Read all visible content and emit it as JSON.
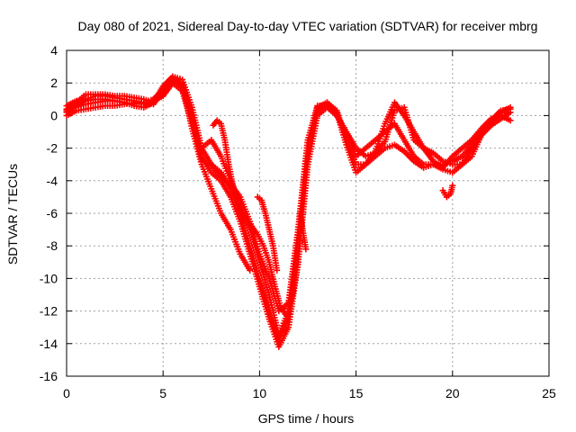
{
  "chart_data": {
    "type": "scatter",
    "title": "Day 080 of 2021, Sidereal Day-to-day VTEC variation (SDTVAR) for receiver mbrg",
    "xlabel": "GPS time / hours",
    "ylabel": "SDTVAR / TECUs",
    "xlim": [
      0,
      25
    ],
    "ylim": [
      -16,
      4
    ],
    "xticks": [
      0,
      5,
      10,
      15,
      20,
      25
    ],
    "yticks": [
      -16,
      -14,
      -12,
      -10,
      -8,
      -6,
      -4,
      -2,
      0,
      2,
      4
    ],
    "grid": true,
    "legend": "none",
    "marker": "plus",
    "color": "#ff0000",
    "series": [
      {
        "x": [
          0.0,
          0.5,
          1.0,
          1.5,
          2.0,
          2.5,
          3.0,
          3.5,
          4.0,
          4.5,
          5.0,
          5.5,
          6.0,
          6.5,
          7.0,
          7.5,
          8.0,
          8.5,
          9.0,
          9.5,
          10.0,
          10.5,
          11.0,
          11.5,
          12.0,
          12.5,
          13.0,
          13.5,
          14.0,
          14.5,
          15.0,
          15.5,
          16.0,
          16.5,
          17.0,
          17.5,
          18.0,
          18.5,
          19.0,
          19.5,
          20.0,
          20.5,
          21.0,
          21.5,
          22.0,
          22.5,
          23.0
        ],
        "y": [
          0.2,
          0.6,
          1.0,
          1.2,
          1.2,
          1.1,
          1.0,
          0.9,
          0.8,
          0.7,
          1.5,
          2.2,
          2.0,
          0.0,
          -2.5,
          -3.5,
          -4.0,
          -5.0,
          -6.5,
          -8.5,
          -10.5,
          -12.5,
          -14.2,
          -13.0,
          -9.0,
          -3.0,
          0.0,
          0.5,
          0.0,
          -1.0,
          -2.5,
          -2.0,
          -1.5,
          -1.0,
          -0.5,
          -1.5,
          -2.5,
          -3.0,
          -3.0,
          -3.3,
          -3.5,
          -3.0,
          -2.0,
          -1.2,
          -0.6,
          -0.2,
          0.2
        ]
      },
      {
        "x": [
          0.0,
          0.5,
          1.0,
          1.5,
          2.0,
          2.5,
          3.0,
          3.5,
          4.0,
          4.5,
          5.0,
          5.5,
          6.0,
          6.5,
          7.0,
          7.5,
          8.0,
          8.5,
          9.0,
          9.5,
          10.0,
          10.5,
          11.0,
          11.5,
          12.0,
          12.5,
          13.0,
          13.5,
          14.0,
          14.5,
          15.0,
          15.5,
          16.0,
          16.5,
          17.0,
          17.5,
          18.0,
          18.5,
          19.0,
          19.5,
          20.0,
          20.5,
          21.0,
          21.5,
          22.0,
          22.5,
          23.0
        ],
        "y": [
          0.4,
          0.8,
          1.3,
          1.3,
          1.3,
          1.2,
          1.2,
          1.1,
          1.0,
          0.8,
          1.8,
          2.4,
          2.2,
          0.5,
          -2.0,
          -3.0,
          -3.5,
          -4.5,
          -6.0,
          -8.0,
          -10.0,
          -11.8,
          -13.8,
          -12.5,
          -8.5,
          -2.5,
          0.3,
          0.8,
          0.3,
          -1.5,
          -3.0,
          -3.0,
          -2.5,
          -2.0,
          -1.8,
          -2.2,
          -2.8,
          -3.2,
          -3.0,
          -3.0,
          -2.8,
          -2.5,
          -1.8,
          -1.0,
          -0.4,
          0.2,
          0.5
        ]
      },
      {
        "x": [
          0.0,
          0.5,
          1.0,
          1.5,
          2.0,
          2.5,
          3.0,
          3.5,
          4.0,
          4.5,
          5.0,
          5.5,
          6.0,
          6.5,
          7.0,
          7.5,
          8.0,
          8.5,
          9.0,
          9.5,
          10.0,
          10.5,
          11.0,
          11.5,
          12.0,
          12.5,
          13.0,
          13.5,
          14.0,
          14.5,
          15.0,
          15.5,
          16.0,
          16.5,
          17.0,
          17.5,
          18.0,
          18.5,
          19.0,
          19.5,
          20.0,
          20.5,
          21.0,
          21.5,
          22.0,
          22.5,
          23.0
        ],
        "y": [
          0.0,
          0.3,
          0.4,
          0.5,
          0.6,
          0.6,
          0.7,
          0.8,
          0.7,
          0.9,
          1.2,
          2.0,
          1.5,
          -0.5,
          -2.0,
          -1.5,
          -2.5,
          -4.0,
          -5.5,
          -7.0,
          -9.0,
          -11.0,
          -13.5,
          -12.0,
          -7.5,
          -2.0,
          0.5,
          0.8,
          0.2,
          -1.8,
          -3.5,
          -3.0,
          -2.2,
          -0.5,
          0.8,
          0.0,
          -1.0,
          -2.0,
          -2.8,
          -3.2,
          -2.5,
          -2.0,
          -1.5,
          -0.8,
          -0.2,
          0.0,
          -0.3
        ]
      },
      {
        "x": [
          0.0,
          0.5,
          1.0,
          1.5,
          2.0,
          2.5,
          3.0,
          3.5,
          4.0,
          4.5,
          5.0,
          5.5,
          6.0,
          6.5,
          7.0,
          7.5,
          8.0,
          8.5,
          9.0,
          9.5,
          10.0,
          10.5,
          11.0,
          11.5,
          12.0,
          12.5,
          13.0,
          13.5,
          14.0,
          14.5,
          15.0,
          15.5,
          16.0,
          16.5,
          17.0,
          17.5,
          18.0,
          18.5,
          19.0,
          19.5,
          20.0,
          20.5,
          21.0,
          21.5,
          22.0,
          22.5,
          23.0
        ],
        "y": [
          0.6,
          0.9,
          0.9,
          1.0,
          1.0,
          0.9,
          0.8,
          0.6,
          0.5,
          0.8,
          1.4,
          2.1,
          1.8,
          -0.3,
          -2.8,
          -3.0,
          -3.8,
          -4.2,
          -5.0,
          -6.5,
          -8.5,
          -10.0,
          -12.0,
          -11.5,
          -7.0,
          -1.5,
          0.6,
          0.6,
          0.0,
          -1.0,
          -2.0,
          -2.5,
          -2.3,
          -1.6,
          0.3,
          0.5,
          -1.5,
          -2.0,
          -2.3,
          -2.8,
          -3.0,
          -3.0,
          -2.5,
          -1.2,
          -0.3,
          0.3,
          0.4
        ]
      },
      {
        "x": [
          0.0,
          0.5,
          1.0,
          1.5,
          2.0,
          2.5,
          3.0,
          3.5,
          4.0,
          4.5,
          5.0,
          5.5,
          6.0,
          6.5,
          7.0,
          7.5,
          8.0,
          8.5,
          9.0,
          9.5
        ],
        "y": [
          0.3,
          0.5,
          0.7,
          0.8,
          0.9,
          0.9,
          0.8,
          0.7,
          0.8,
          1.0,
          1.6,
          2.3,
          1.9,
          -0.8,
          -3.0,
          -4.5,
          -6.0,
          -7.0,
          -8.5,
          -9.5
        ]
      },
      {
        "x": [
          7.6,
          7.8,
          8.0,
          8.2,
          8.4,
          8.6,
          8.8,
          9.0,
          9.3,
          9.6,
          9.9,
          10.2,
          10.5,
          10.8,
          11.1,
          11.4,
          11.7,
          12.0
        ],
        "y": [
          -0.6,
          -0.3,
          -0.5,
          -1.5,
          -3.0,
          -4.2,
          -5.0,
          -5.8,
          -6.3,
          -6.8,
          -7.3,
          -8.0,
          -9.0,
          -10.5,
          -11.8,
          -12.3,
          -11.0,
          -9.0
        ]
      },
      {
        "x": [
          9.9,
          10.1,
          10.3,
          10.5,
          10.7,
          10.9
        ],
        "y": [
          -5.0,
          -5.2,
          -6.0,
          -7.0,
          -8.0,
          -9.5
        ]
      },
      {
        "x": [
          12.1,
          12.2,
          12.3,
          12.4
        ],
        "y": [
          -6.0,
          -6.8,
          -7.5,
          -8.2
        ]
      },
      {
        "x": [
          19.5,
          19.7,
          19.9,
          20.0
        ],
        "y": [
          -4.6,
          -5.0,
          -4.8,
          -4.3
        ]
      }
    ]
  }
}
